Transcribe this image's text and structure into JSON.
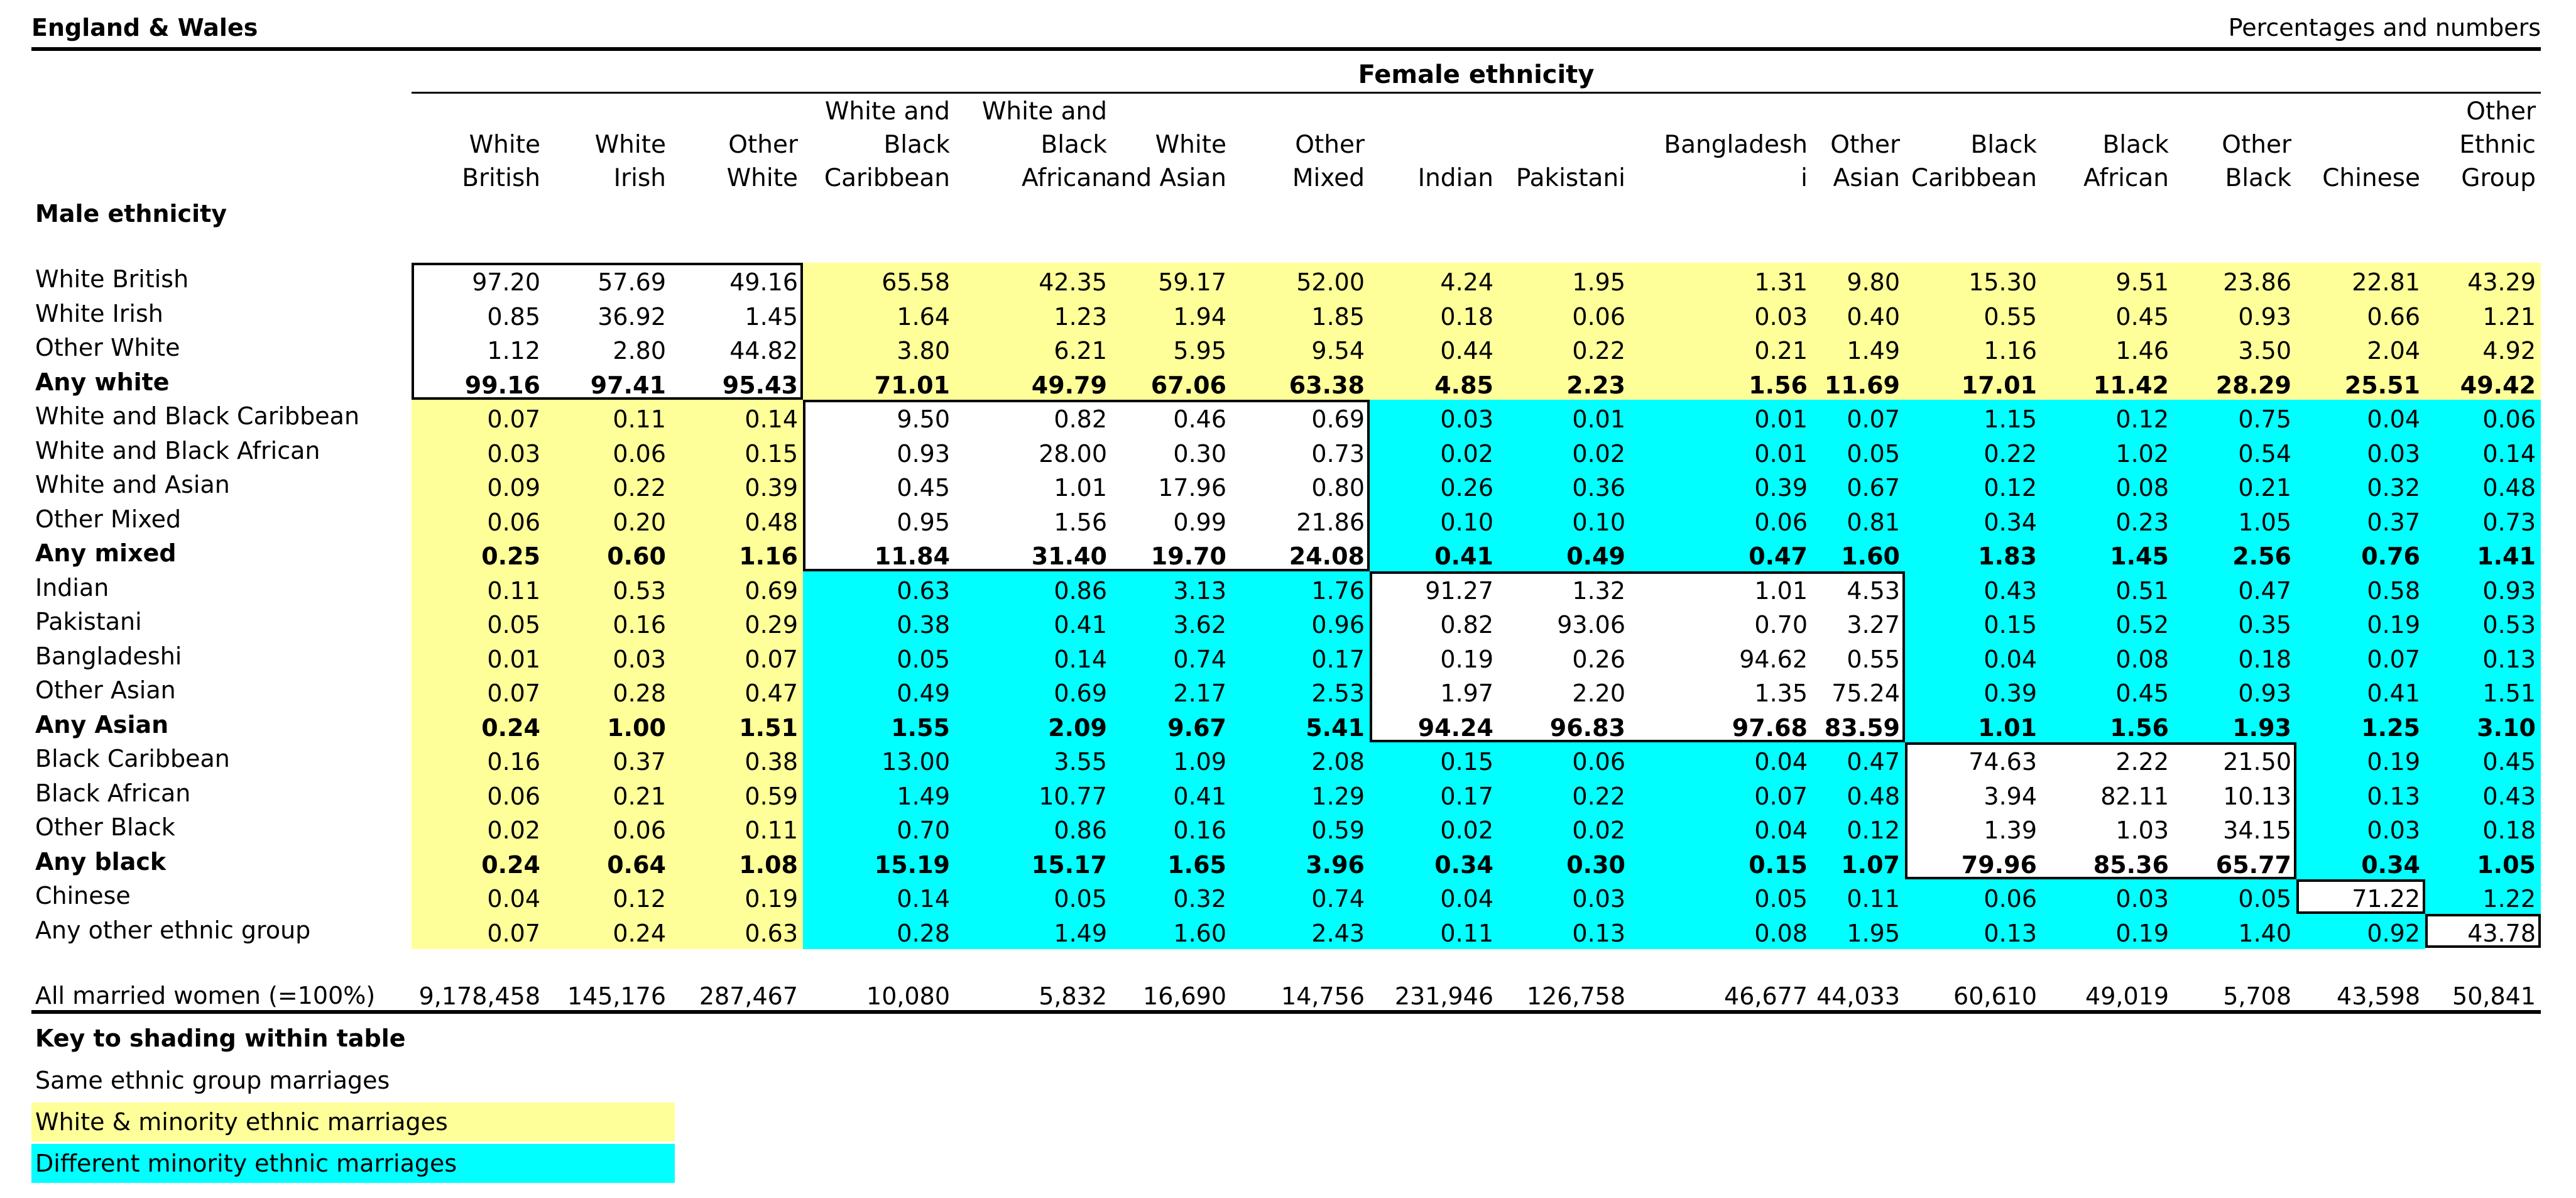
{
  "header": {
    "left": "England & Wales",
    "right": "Percentages and numbers",
    "female_title": "Female ethnicity",
    "male_title": "Male ethnicity"
  },
  "columns": [
    "White\nBritish",
    "White\nIrish",
    "Other\nWhite",
    "White and\nBlack\nCaribbean",
    "White and\nBlack\nAfrican",
    "White\nand Asian",
    "Other\nMixed",
    "Indian",
    "Pakistani",
    "Bangladesh\ni",
    "Other\nAsian",
    "Black\nCaribbean",
    "Black\nAfrican",
    "Other\nBlack",
    "Chinese",
    "Other\nEthnic\nGroup"
  ],
  "rows": [
    {
      "label": "White British",
      "bold": false,
      "values": [
        "97.20",
        "57.69",
        "49.16",
        "65.58",
        "42.35",
        "59.17",
        "52.00",
        "4.24",
        "1.95",
        "1.31",
        "9.80",
        "15.30",
        "9.51",
        "23.86",
        "22.81",
        "43.29"
      ]
    },
    {
      "label": "White Irish",
      "bold": false,
      "values": [
        "0.85",
        "36.92",
        "1.45",
        "1.64",
        "1.23",
        "1.94",
        "1.85",
        "0.18",
        "0.06",
        "0.03",
        "0.40",
        "0.55",
        "0.45",
        "0.93",
        "0.66",
        "1.21"
      ]
    },
    {
      "label": "Other White",
      "bold": false,
      "values": [
        "1.12",
        "2.80",
        "44.82",
        "3.80",
        "6.21",
        "5.95",
        "9.54",
        "0.44",
        "0.22",
        "0.21",
        "1.49",
        "1.16",
        "1.46",
        "3.50",
        "2.04",
        "4.92"
      ]
    },
    {
      "label": "Any white",
      "bold": true,
      "values": [
        "99.16",
        "97.41",
        "95.43",
        "71.01",
        "49.79",
        "67.06",
        "63.38",
        "4.85",
        "2.23",
        "1.56",
        "11.69",
        "17.01",
        "11.42",
        "28.29",
        "25.51",
        "49.42"
      ]
    },
    {
      "label": "White and Black Caribbean",
      "bold": false,
      "values": [
        "0.07",
        "0.11",
        "0.14",
        "9.50",
        "0.82",
        "0.46",
        "0.69",
        "0.03",
        "0.01",
        "0.01",
        "0.07",
        "1.15",
        "0.12",
        "0.75",
        "0.04",
        "0.06"
      ]
    },
    {
      "label": "White and Black African",
      "bold": false,
      "values": [
        "0.03",
        "0.06",
        "0.15",
        "0.93",
        "28.00",
        "0.30",
        "0.73",
        "0.02",
        "0.02",
        "0.01",
        "0.05",
        "0.22",
        "1.02",
        "0.54",
        "0.03",
        "0.14"
      ]
    },
    {
      "label": "White and Asian",
      "bold": false,
      "values": [
        "0.09",
        "0.22",
        "0.39",
        "0.45",
        "1.01",
        "17.96",
        "0.80",
        "0.26",
        "0.36",
        "0.39",
        "0.67",
        "0.12",
        "0.08",
        "0.21",
        "0.32",
        "0.48"
      ]
    },
    {
      "label": "Other Mixed",
      "bold": false,
      "values": [
        "0.06",
        "0.20",
        "0.48",
        "0.95",
        "1.56",
        "0.99",
        "21.86",
        "0.10",
        "0.10",
        "0.06",
        "0.81",
        "0.34",
        "0.23",
        "1.05",
        "0.37",
        "0.73"
      ]
    },
    {
      "label": "Any mixed",
      "bold": true,
      "values": [
        "0.25",
        "0.60",
        "1.16",
        "11.84",
        "31.40",
        "19.70",
        "24.08",
        "0.41",
        "0.49",
        "0.47",
        "1.60",
        "1.83",
        "1.45",
        "2.56",
        "0.76",
        "1.41"
      ]
    },
    {
      "label": "Indian",
      "bold": false,
      "values": [
        "0.11",
        "0.53",
        "0.69",
        "0.63",
        "0.86",
        "3.13",
        "1.76",
        "91.27",
        "1.32",
        "1.01",
        "4.53",
        "0.43",
        "0.51",
        "0.47",
        "0.58",
        "0.93"
      ]
    },
    {
      "label": "Pakistani",
      "bold": false,
      "values": [
        "0.05",
        "0.16",
        "0.29",
        "0.38",
        "0.41",
        "3.62",
        "0.96",
        "0.82",
        "93.06",
        "0.70",
        "3.27",
        "0.15",
        "0.52",
        "0.35",
        "0.19",
        "0.53"
      ]
    },
    {
      "label": "Bangladeshi",
      "bold": false,
      "values": [
        "0.01",
        "0.03",
        "0.07",
        "0.05",
        "0.14",
        "0.74",
        "0.17",
        "0.19",
        "0.26",
        "94.62",
        "0.55",
        "0.04",
        "0.08",
        "0.18",
        "0.07",
        "0.13"
      ]
    },
    {
      "label": "Other Asian",
      "bold": false,
      "values": [
        "0.07",
        "0.28",
        "0.47",
        "0.49",
        "0.69",
        "2.17",
        "2.53",
        "1.97",
        "2.20",
        "1.35",
        "75.24",
        "0.39",
        "0.45",
        "0.93",
        "0.41",
        "1.51"
      ]
    },
    {
      "label": "Any Asian",
      "bold": true,
      "values": [
        "0.24",
        "1.00",
        "1.51",
        "1.55",
        "2.09",
        "9.67",
        "5.41",
        "94.24",
        "96.83",
        "97.68",
        "83.59",
        "1.01",
        "1.56",
        "1.93",
        "1.25",
        "3.10"
      ]
    },
    {
      "label": "Black Caribbean",
      "bold": false,
      "values": [
        "0.16",
        "0.37",
        "0.38",
        "13.00",
        "3.55",
        "1.09",
        "2.08",
        "0.15",
        "0.06",
        "0.04",
        "0.47",
        "74.63",
        "2.22",
        "21.50",
        "0.19",
        "0.45"
      ]
    },
    {
      "label": "Black African",
      "bold": false,
      "values": [
        "0.06",
        "0.21",
        "0.59",
        "1.49",
        "10.77",
        "0.41",
        "1.29",
        "0.17",
        "0.22",
        "0.07",
        "0.48",
        "3.94",
        "82.11",
        "10.13",
        "0.13",
        "0.43"
      ]
    },
    {
      "label": "Other Black",
      "bold": false,
      "values": [
        "0.02",
        "0.06",
        "0.11",
        "0.70",
        "0.86",
        "0.16",
        "0.59",
        "0.02",
        "0.02",
        "0.04",
        "0.12",
        "1.39",
        "1.03",
        "34.15",
        "0.03",
        "0.18"
      ]
    },
    {
      "label": "Any black",
      "bold": true,
      "values": [
        "0.24",
        "0.64",
        "1.08",
        "15.19",
        "15.17",
        "1.65",
        "3.96",
        "0.34",
        "0.30",
        "0.15",
        "1.07",
        "79.96",
        "85.36",
        "65.77",
        "0.34",
        "1.05"
      ]
    },
    {
      "label": "Chinese",
      "bold": false,
      "values": [
        "0.04",
        "0.12",
        "0.19",
        "0.14",
        "0.05",
        "0.32",
        "0.74",
        "0.04",
        "0.03",
        "0.05",
        "0.11",
        "0.06",
        "0.03",
        "0.05",
        "71.22",
        "1.22"
      ]
    },
    {
      "label": "Any other ethnic group",
      "bold": false,
      "values": [
        "0.07",
        "0.24",
        "0.63",
        "0.28",
        "1.49",
        "1.60",
        "2.43",
        "0.11",
        "0.13",
        "0.08",
        "1.95",
        "0.13",
        "0.19",
        "1.40",
        "0.92",
        "43.78"
      ]
    }
  ],
  "totals": {
    "label": "All married women (=100%)",
    "values": [
      "9,178,458",
      "145,176",
      "287,467",
      "10,080",
      "5,832",
      "16,690",
      "14,756",
      "231,946",
      "126,758",
      "46,677",
      "44,033",
      "60,610",
      "49,019",
      "5,708",
      "43,598",
      "50,841"
    ]
  },
  "key": {
    "title": "Key to shading within table",
    "items": [
      {
        "label": "Same ethnic group marriages",
        "color": "#ffffff"
      },
      {
        "label": "White & minority ethnic marriages",
        "color": "#ffff99"
      },
      {
        "label": "Different minority ethnic marriages",
        "color": "#00ffff"
      }
    ]
  },
  "colors": {
    "yellow": "#ffff99",
    "cyan": "#00ffff"
  }
}
